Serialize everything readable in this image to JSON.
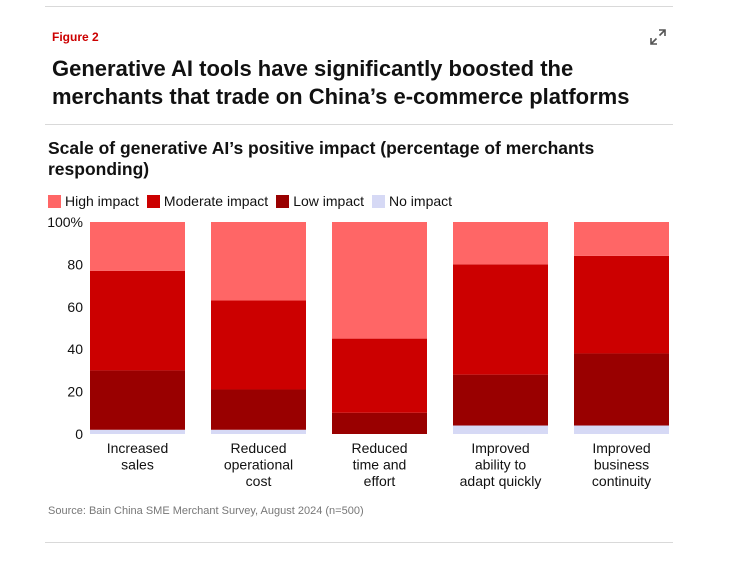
{
  "figure_label": "Figure 2",
  "headline": "Generative AI tools have significantly boosted the merchants that trade on China’s e-commerce platforms",
  "icons": {
    "expand": "expand-icon"
  },
  "chart_data": {
    "type": "bar",
    "stacked": true,
    "title": "Scale of generative AI’s positive impact (percentage of merchants responding)",
    "categories": [
      [
        "Increased",
        "sales"
      ],
      [
        "Reduced",
        "operational",
        "cost"
      ],
      [
        "Reduced",
        "time and",
        "effort"
      ],
      [
        "Improved",
        "ability to",
        "adapt quickly"
      ],
      [
        "Improved",
        "business",
        "continuity"
      ]
    ],
    "series": [
      {
        "name": "No impact",
        "color": "#d6d9f5",
        "values": [
          2,
          2,
          0,
          4,
          4
        ]
      },
      {
        "name": "Low impact",
        "color": "#990000",
        "values": [
          28,
          19,
          10,
          24,
          34
        ]
      },
      {
        "name": "Moderate impact",
        "color": "#cc0000",
        "values": [
          47,
          42,
          35,
          52,
          46
        ]
      },
      {
        "name": "High impact",
        "color": "#ff6666",
        "values": [
          23,
          37,
          55,
          20,
          16
        ]
      }
    ],
    "legend_order": [
      "High impact",
      "Moderate impact",
      "Low impact",
      "No impact"
    ],
    "ylim": [
      0,
      100
    ],
    "yticks": [
      "0",
      "20",
      "40",
      "60",
      "80",
      "100%"
    ],
    "legend_position": "top-left",
    "grid": false
  },
  "source": "Source: Bain China SME Merchant Survey, August 2024 (n=500)"
}
